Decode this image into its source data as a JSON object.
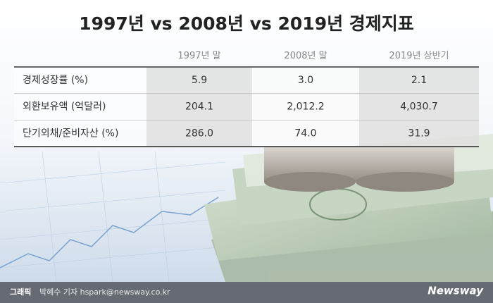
{
  "header": {
    "title": "1997년 vs 2008년 vs 2019년 경제지표"
  },
  "table": {
    "columns": [
      "1997년 말",
      "2008년 말",
      "2019년 상반기"
    ],
    "rows": [
      [
        "경제성장률 (%)",
        "5.9",
        "3.0",
        "2.1"
      ],
      [
        "외환보유액 (억달러)",
        "204.1",
        "2,012.2",
        "4,030.7"
      ],
      [
        "단기외채/준비자산 (%)",
        "286.0",
        "74.0",
        "31.9"
      ]
    ]
  },
  "footer": {
    "credit_label": "그래픽",
    "credit": "박혜수 기자 hspark@newsway.co.kr",
    "logo": "Newsway"
  }
}
